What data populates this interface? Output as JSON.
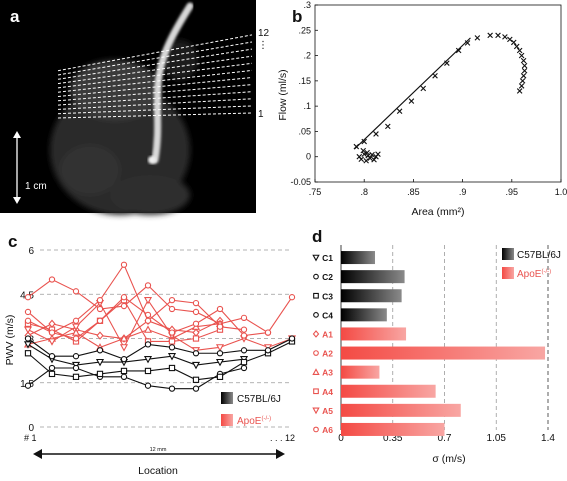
{
  "panels": {
    "a": {
      "label": "a",
      "slice_labels": [
        "12",
        "⋮",
        "1"
      ],
      "scale_bar_label": "1 cm"
    },
    "b": {
      "label": "b"
    },
    "c": {
      "label": "c"
    },
    "d": {
      "label": "d"
    }
  },
  "chart_data": [
    {
      "panel": "b",
      "type": "scatter",
      "xlabel": "Area (mm²)",
      "ylabel": "Flow (ml/s)",
      "xlim": [
        0.75,
        1.0
      ],
      "ylim": [
        -0.05,
        0.3
      ],
      "x_ticks": [
        ".75",
        ".8",
        ".85",
        ".9",
        ".95",
        "1.0"
      ],
      "x_tick_values": [
        0.75,
        0.8,
        0.85,
        0.9,
        0.95,
        1.0
      ],
      "y_ticks": [
        "-0.05",
        "0",
        ".05",
        ".1",
        ".15",
        ".2",
        ".25",
        ".3"
      ],
      "y_tick_values": [
        -0.05,
        0,
        0.05,
        0.1,
        0.15,
        0.2,
        0.25,
        0.3
      ],
      "grid": false,
      "marker": "x",
      "points": [
        [
          0.792,
          0.02
        ],
        [
          0.795,
          0.0
        ],
        [
          0.797,
          -0.005
        ],
        [
          0.8,
          0.005
        ],
        [
          0.802,
          -0.008
        ],
        [
          0.804,
          0.002
        ],
        [
          0.806,
          -0.003
        ],
        [
          0.808,
          0.004
        ],
        [
          0.81,
          -0.006
        ],
        [
          0.812,
          0.0
        ],
        [
          0.814,
          0.005
        ],
        [
          0.799,
          0.012
        ],
        [
          0.803,
          0.008
        ],
        [
          0.8,
          0.03
        ],
        [
          0.812,
          0.045
        ],
        [
          0.824,
          0.06
        ],
        [
          0.836,
          0.09
        ],
        [
          0.848,
          0.11
        ],
        [
          0.86,
          0.135
        ],
        [
          0.872,
          0.16
        ],
        [
          0.884,
          0.185
        ],
        [
          0.896,
          0.21
        ],
        [
          0.905,
          0.225
        ],
        [
          0.915,
          0.235
        ],
        [
          0.928,
          0.24
        ],
        [
          0.936,
          0.24
        ],
        [
          0.943,
          0.237
        ],
        [
          0.948,
          0.232
        ],
        [
          0.952,
          0.226
        ],
        [
          0.955,
          0.218
        ],
        [
          0.958,
          0.21
        ],
        [
          0.96,
          0.2
        ],
        [
          0.962,
          0.19
        ],
        [
          0.963,
          0.18
        ],
        [
          0.963,
          0.17
        ],
        [
          0.962,
          0.16
        ],
        [
          0.961,
          0.15
        ],
        [
          0.96,
          0.14
        ],
        [
          0.958,
          0.13
        ]
      ],
      "fit_line": [
        [
          0.79,
          0.015
        ],
        [
          0.908,
          0.235
        ]
      ]
    },
    {
      "panel": "c",
      "type": "line",
      "xlabel": "Location",
      "ylabel": "PWV (m/s)",
      "ylim": [
        0,
        6
      ],
      "y_ticks": [
        "0",
        "1.5",
        "3",
        "4.5",
        "6"
      ],
      "y_tick_values": [
        0,
        1.5,
        3,
        4.5,
        6
      ],
      "x_start_label": "# 1",
      "x_end_label": ". . . 12",
      "span_label": "12 mm",
      "grid": "horizontal-dashed",
      "legend": "bottom-right",
      "legend_items": [
        {
          "label": "C57BL/6J",
          "color": "#111111"
        },
        {
          "label": "ApoE",
          "sup": "(-/-)",
          "color": "#e9534f"
        }
      ],
      "x": [
        1,
        2,
        3,
        4,
        5,
        6,
        7,
        8,
        9,
        10,
        11,
        12
      ],
      "series": [
        {
          "group": "C57BL/6J",
          "marker": "triangle-down",
          "color": "#111111",
          "values": [
            2.8,
            2.3,
            2.1,
            2.2,
            2.2,
            2.3,
            2.4,
            2.1,
            2.2,
            2.3,
            null,
            null
          ]
        },
        {
          "group": "C57BL/6J",
          "marker": "circle",
          "color": "#111111",
          "values": [
            1.4,
            2.0,
            2.0,
            1.7,
            1.7,
            1.4,
            1.3,
            1.3,
            1.8,
            2.0,
            null,
            null
          ]
        },
        {
          "group": "C57BL/6J",
          "marker": "square",
          "color": "#111111",
          "values": [
            2.5,
            1.8,
            1.7,
            1.8,
            1.9,
            1.9,
            2.0,
            1.6,
            1.7,
            2.2,
            2.5,
            2.9
          ]
        },
        {
          "group": "C57BL/6J",
          "marker": "circle",
          "color": "#111111",
          "values": [
            3.0,
            2.4,
            2.4,
            2.6,
            2.3,
            2.8,
            2.7,
            2.5,
            2.5,
            2.6,
            2.6,
            3.0
          ]
        },
        {
          "group": "ApoE",
          "marker": "diamond",
          "color": "#e9534f",
          "values": [
            3.1,
            3.5,
            3.3,
            3.1,
            3.0,
            3.6,
            3.3,
            3.2,
            3.6,
            null,
            null,
            null
          ]
        },
        {
          "group": "ApoE",
          "marker": "circle",
          "color": "#e9534f",
          "values": [
            4.4,
            5.0,
            4.6,
            4.0,
            4.1,
            4.8,
            4.0,
            3.9,
            3.5,
            3.7,
            3.2,
            null
          ]
        },
        {
          "group": "ApoE",
          "marker": "triangle",
          "color": "#e9534f",
          "values": [
            2.8,
            3.0,
            3.2,
            2.7,
            3.0,
            3.3,
            3.0,
            3.4,
            3.5,
            null,
            null,
            null
          ]
        },
        {
          "group": "ApoE",
          "marker": "square",
          "color": "#e9534f",
          "values": [
            3.5,
            3.3,
            2.9,
            3.6,
            4.3,
            2.9,
            2.9,
            3.0,
            3.3,
            null,
            null,
            null
          ]
        },
        {
          "group": "ApoE",
          "marker": "triangle-down",
          "color": "#e9534f",
          "values": [
            3.3,
            2.9,
            3.4,
            4.2,
            2.7,
            4.3,
            3.1,
            2.6,
            2.7,
            3.0,
            2.7,
            3.0
          ]
        },
        {
          "group": "ApoE",
          "marker": "circle",
          "color": "#e9534f",
          "values": [
            3.6,
            3.2,
            3.0,
            3.6,
            4.4,
            3.8,
            3.2,
            3.5,
            4.0,
            3.1,
            3.2,
            4.4
          ]
        }
      ],
      "apoe_second_pass": [
        3.9,
        3.2,
        3.6,
        4.3,
        5.5,
        3.6,
        4.3,
        4.2,
        3.4,
        3.3,
        null,
        null
      ]
    },
    {
      "panel": "d",
      "type": "bar",
      "orientation": "horizontal",
      "xlabel": "σ (m/s)",
      "xlim": [
        0,
        1.4
      ],
      "x_ticks": [
        "0",
        "0.35",
        "0.7",
        "1.05",
        "1.4"
      ],
      "x_tick_values": [
        0,
        0.35,
        0.7,
        1.05,
        1.4
      ],
      "grid": "vertical-dashed",
      "legend": "top-right",
      "legend_items": [
        {
          "label": "C57BL/6J",
          "color": "#111111"
        },
        {
          "label": "ApoE",
          "sup": "(-/-)",
          "color": "#e9534f"
        }
      ],
      "categories": [
        {
          "label": "C1",
          "marker": "triangle-down",
          "group": "C57BL/6J"
        },
        {
          "label": "C2",
          "marker": "circle",
          "group": "C57BL/6J"
        },
        {
          "label": "C3",
          "marker": "square",
          "group": "C57BL/6J"
        },
        {
          "label": "C4",
          "marker": "circle",
          "group": "C57BL/6J"
        },
        {
          "label": "A1",
          "marker": "diamond",
          "group": "ApoE"
        },
        {
          "label": "A2",
          "marker": "circle",
          "group": "ApoE"
        },
        {
          "label": "A3",
          "marker": "triangle",
          "group": "ApoE"
        },
        {
          "label": "A4",
          "marker": "square",
          "group": "ApoE"
        },
        {
          "label": "A5",
          "marker": "triangle-down",
          "group": "ApoE"
        },
        {
          "label": "A6",
          "marker": "circle",
          "group": "ApoE"
        }
      ],
      "values": [
        0.23,
        0.43,
        0.41,
        0.31,
        0.44,
        1.38,
        0.26,
        0.64,
        0.81,
        0.7
      ]
    }
  ],
  "colors": {
    "black_group": "#111111",
    "red_group": "#e9534f",
    "grid": "#9a9a9a"
  }
}
